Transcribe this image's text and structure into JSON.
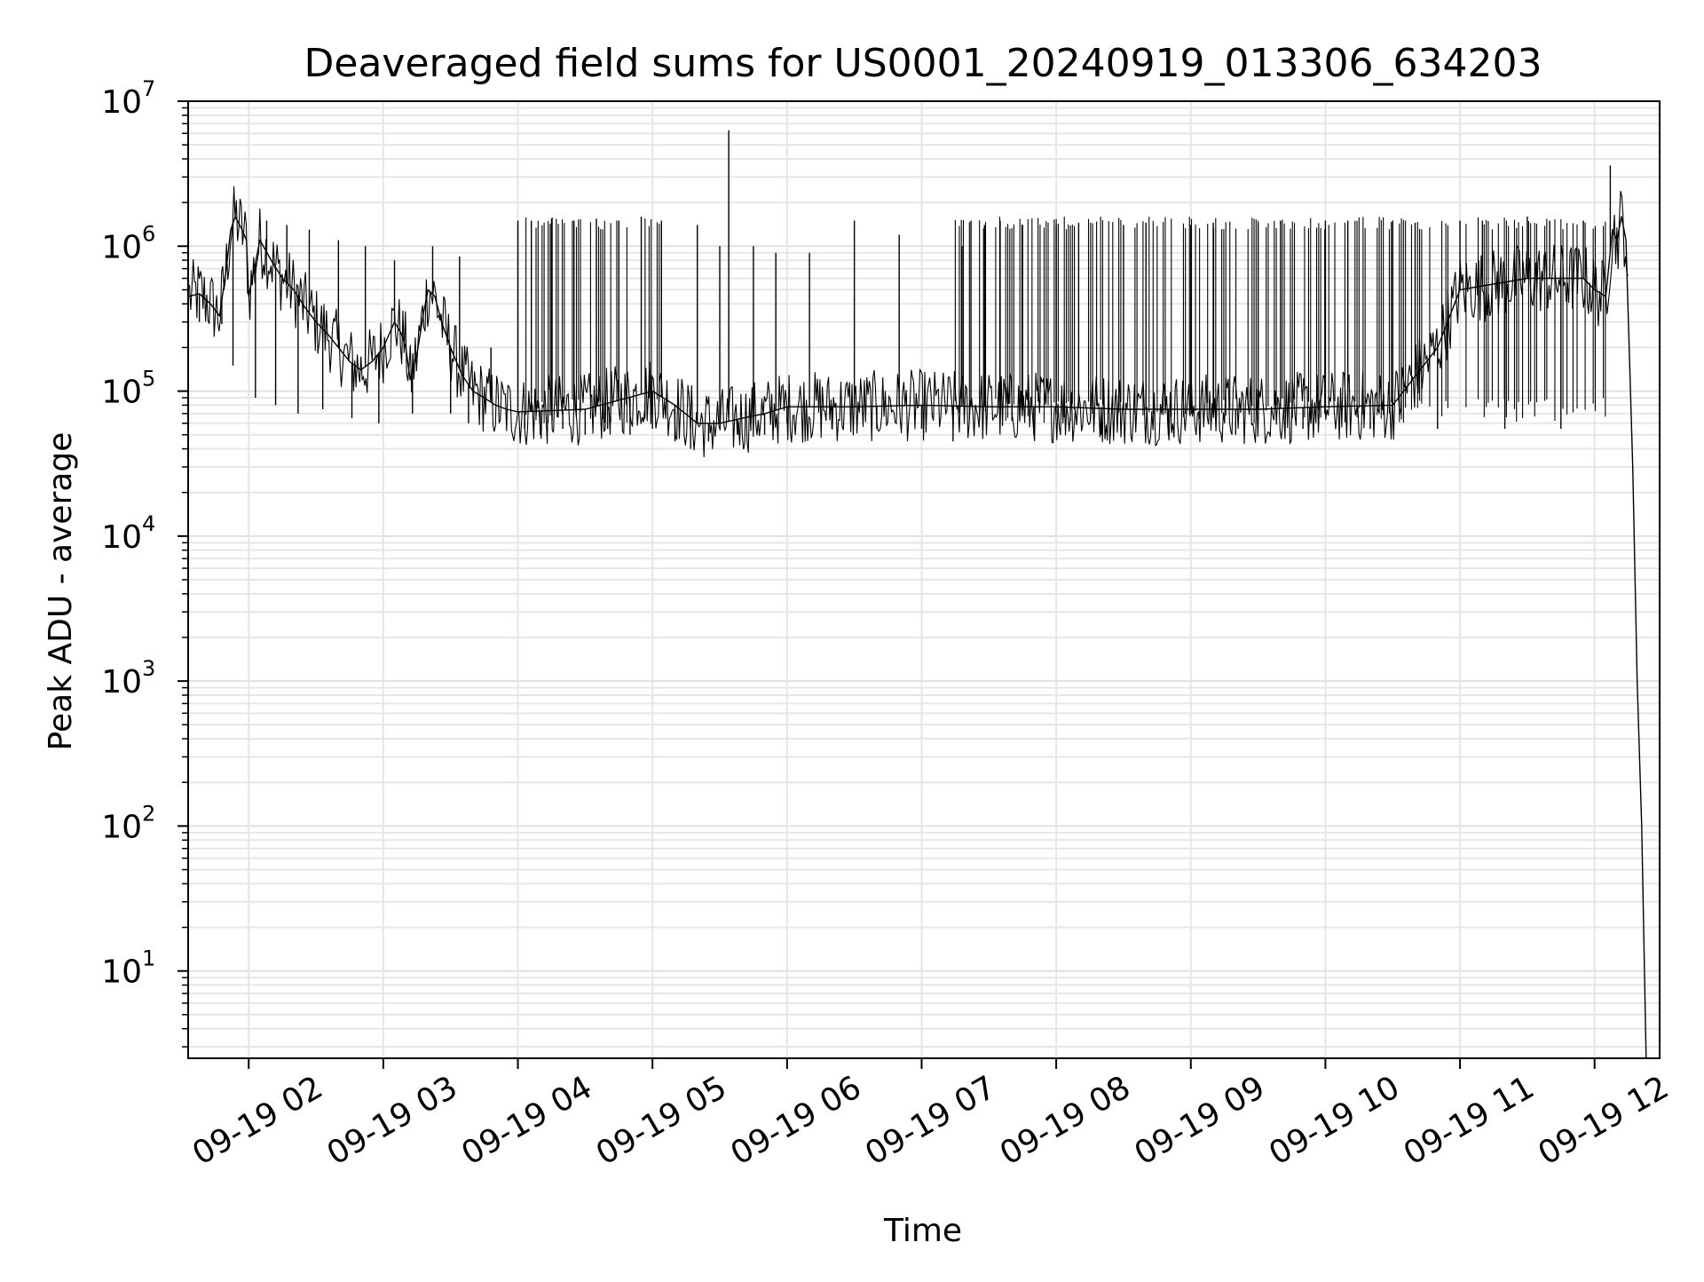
{
  "chart_data": {
    "type": "line",
    "title": "Deaveraged field sums for US0001_20240919_013306_634203",
    "xlabel": "Time",
    "ylabel": "Peak ADU - average",
    "y_scale": "log",
    "ylim": [
      2.5,
      10000000
    ],
    "xlim": [
      "2024-09-19 01:33",
      "2024-09-19 12:29"
    ],
    "grid": true,
    "line_color": "#000000",
    "x_ticks": [
      {
        "value": "2024-09-19 02:00",
        "label": "09-19 02"
      },
      {
        "value": "2024-09-19 03:00",
        "label": "09-19 03"
      },
      {
        "value": "2024-09-19 04:00",
        "label": "09-19 04"
      },
      {
        "value": "2024-09-19 05:00",
        "label": "09-19 05"
      },
      {
        "value": "2024-09-19 06:00",
        "label": "09-19 06"
      },
      {
        "value": "2024-09-19 07:00",
        "label": "09-19 07"
      },
      {
        "value": "2024-09-19 08:00",
        "label": "09-19 08"
      },
      {
        "value": "2024-09-19 09:00",
        "label": "09-19 09"
      },
      {
        "value": "2024-09-19 10:00",
        "label": "09-19 10"
      },
      {
        "value": "2024-09-19 11:00",
        "label": "09-19 11"
      },
      {
        "value": "2024-09-19 12:00",
        "label": "09-19 12"
      }
    ],
    "y_ticks": [
      {
        "value": 10,
        "base": "10",
        "exp": "1"
      },
      {
        "value": 100,
        "base": "10",
        "exp": "2"
      },
      {
        "value": 1000,
        "base": "10",
        "exp": "3"
      },
      {
        "value": 10000,
        "base": "10",
        "exp": "4"
      },
      {
        "value": 100000,
        "base": "10",
        "exp": "5"
      },
      {
        "value": 1000000,
        "base": "10",
        "exp": "6"
      },
      {
        "value": 10000000,
        "base": "10",
        "exp": "7"
      }
    ],
    "series": [
      {
        "points": [
          [
            "2024-09-19 01:33",
            450000
          ],
          [
            "2024-09-19 01:38",
            470000
          ],
          [
            "2024-09-19 01:43",
            400000
          ],
          [
            "2024-09-19 01:47",
            330000
          ],
          [
            "2024-09-19 01:50",
            700000
          ],
          [
            "2024-09-19 01:52",
            1300000
          ],
          [
            "2024-09-19 01:54",
            1600000
          ],
          [
            "2024-09-19 01:57",
            1300000
          ],
          [
            "2024-09-19 01:59",
            1100000
          ],
          [
            "2024-09-19 02:00",
            450000
          ],
          [
            "2024-09-19 02:05",
            1100000
          ],
          [
            "2024-09-19 02:10",
            800000
          ],
          [
            "2024-09-19 02:15",
            600000
          ],
          [
            "2024-09-19 02:20",
            500000
          ],
          [
            "2024-09-19 02:25",
            380000
          ],
          [
            "2024-09-19 02:30",
            300000
          ],
          [
            "2024-09-19 02:35",
            250000
          ],
          [
            "2024-09-19 02:40",
            200000
          ],
          [
            "2024-09-19 02:45",
            160000
          ],
          [
            "2024-09-19 02:50",
            140000
          ],
          [
            "2024-09-19 02:55",
            160000
          ],
          [
            "2024-09-19 03:00",
            200000
          ],
          [
            "2024-09-19 03:05",
            300000
          ],
          [
            "2024-09-19 03:08",
            250000
          ],
          [
            "2024-09-19 03:10",
            200000
          ],
          [
            "2024-09-19 03:12",
            120000
          ],
          [
            "2024-09-19 03:15",
            180000
          ],
          [
            "2024-09-19 03:18",
            350000
          ],
          [
            "2024-09-19 03:20",
            500000
          ],
          [
            "2024-09-19 03:23",
            450000
          ],
          [
            "2024-09-19 03:26",
            300000
          ],
          [
            "2024-09-19 03:30",
            200000
          ],
          [
            "2024-09-19 03:35",
            130000
          ],
          [
            "2024-09-19 03:40",
            100000
          ],
          [
            "2024-09-19 03:45",
            90000
          ],
          [
            "2024-09-19 03:50",
            80000
          ],
          [
            "2024-09-19 03:55",
            75000
          ],
          [
            "2024-09-19 04:00",
            72000
          ],
          [
            "2024-09-19 04:30",
            75000
          ],
          [
            "2024-09-19 05:00",
            100000
          ],
          [
            "2024-09-19 05:10",
            80000
          ],
          [
            "2024-09-19 05:20",
            60000
          ],
          [
            "2024-09-19 05:30",
            60000
          ],
          [
            "2024-09-19 05:40",
            65000
          ],
          [
            "2024-09-19 05:50",
            70000
          ],
          [
            "2024-09-19 06:00",
            78000
          ],
          [
            "2024-09-19 06:30",
            78000
          ],
          [
            "2024-09-19 07:00",
            80000
          ],
          [
            "2024-09-19 07:30",
            78000
          ],
          [
            "2024-09-19 08:00",
            78000
          ],
          [
            "2024-09-19 08:30",
            75000
          ],
          [
            "2024-09-19 09:00",
            75000
          ],
          [
            "2024-09-19 09:30",
            75000
          ],
          [
            "2024-09-19 10:00",
            78000
          ],
          [
            "2024-09-19 10:30",
            80000
          ],
          [
            "2024-09-19 10:50",
            200000
          ],
          [
            "2024-09-19 11:00",
            500000
          ],
          [
            "2024-09-19 11:30",
            600000
          ],
          [
            "2024-09-19 11:55",
            600000
          ],
          [
            "2024-09-19 12:00",
            500000
          ],
          [
            "2024-09-19 12:05",
            450000
          ],
          [
            "2024-09-19 12:08",
            1300000
          ],
          [
            "2024-09-19 12:10",
            1100000
          ],
          [
            "2024-09-19 12:12",
            1600000
          ],
          [
            "2024-09-19 12:14",
            1100000
          ],
          [
            "2024-09-19 12:17",
            30000
          ],
          [
            "2024-09-19 12:19",
            1000
          ],
          [
            "2024-09-19 12:21",
            100
          ],
          [
            "2024-09-19 12:23",
            2.5
          ]
        ],
        "spikes": [
          [
            "2024-09-19 01:38",
            300000
          ],
          [
            "2024-09-19 01:48",
            290000
          ],
          [
            "2024-09-19 01:53",
            150000
          ],
          [
            "2024-09-19 02:03",
            90000
          ],
          [
            "2024-09-19 02:08",
            1500000
          ],
          [
            "2024-09-19 02:12",
            80000
          ],
          [
            "2024-09-19 02:17",
            1400000
          ],
          [
            "2024-09-19 02:22",
            70000
          ],
          [
            "2024-09-19 02:27",
            1300000
          ],
          [
            "2024-09-19 02:33",
            75000
          ],
          [
            "2024-09-19 02:40",
            1100000
          ],
          [
            "2024-09-19 02:46",
            65000
          ],
          [
            "2024-09-19 02:52",
            1000000
          ],
          [
            "2024-09-19 02:58",
            60000
          ],
          [
            "2024-09-19 03:05",
            800000
          ],
          [
            "2024-09-19 03:13",
            70000
          ],
          [
            "2024-09-19 03:22",
            1000000
          ],
          [
            "2024-09-19 03:30",
            70000
          ],
          [
            "2024-09-19 03:34",
            850000
          ],
          [
            "2024-09-19 03:38",
            60000
          ],
          [
            "2024-09-19 03:48",
            200000
          ],
          [
            "2024-09-19 04:00",
            1500000
          ],
          [
            "2024-09-19 04:03",
            55000
          ],
          [
            "2024-09-19 04:06",
            1500000
          ],
          [
            "2024-09-19 04:10",
            50000
          ],
          [
            "2024-09-19 04:15",
            1550000
          ],
          [
            "2024-09-19 04:20",
            55000
          ],
          [
            "2024-09-19 04:25",
            1500000
          ],
          [
            "2024-09-19 04:30",
            50000
          ],
          [
            "2024-09-19 04:35",
            1550000
          ],
          [
            "2024-09-19 04:40",
            55000
          ],
          [
            "2024-09-19 04:45",
            1500000
          ],
          [
            "2024-09-19 04:50",
            50000
          ],
          [
            "2024-09-19 04:55",
            1600000
          ],
          [
            "2024-09-19 05:00",
            55000
          ],
          [
            "2024-09-19 05:04",
            1500000
          ],
          [
            "2024-09-19 05:10",
            45000
          ],
          [
            "2024-09-19 05:17",
            40000
          ],
          [
            "2024-09-19 05:20",
            1400000
          ],
          [
            "2024-09-19 05:25",
            45000
          ],
          [
            "2024-09-19 05:30",
            1000000
          ],
          [
            "2024-09-19 05:34",
            6300000
          ],
          [
            "2024-09-19 05:38",
            50000
          ],
          [
            "2024-09-19 05:45",
            1000000
          ],
          [
            "2024-09-19 05:50",
            50000
          ],
          [
            "2024-09-19 05:55",
            900000
          ],
          [
            "2024-09-19 06:00",
            60000
          ],
          [
            "2024-09-19 06:10",
            900000
          ],
          [
            "2024-09-19 06:20",
            55000
          ],
          [
            "2024-09-19 06:30",
            1500000
          ],
          [
            "2024-09-19 06:40",
            55000
          ],
          [
            "2024-09-19 06:50",
            1200000
          ],
          [
            "2024-09-19 07:00",
            55000
          ],
          [
            "2024-09-19 07:14",
            45000
          ],
          [
            "2024-09-19 07:18",
            1000000
          ],
          [
            "2024-09-19 07:22",
            1500000
          ],
          [
            "2024-09-19 07:28",
            1400000
          ],
          [
            "2024-09-19 07:35",
            1500000
          ],
          [
            "2024-09-19 07:45",
            1400000
          ],
          [
            "2024-09-19 07:50",
            50000
          ],
          [
            "2024-09-19 08:00",
            1400000
          ],
          [
            "2024-09-19 08:10",
            1450000
          ],
          [
            "2024-09-19 08:20",
            50000
          ],
          [
            "2024-09-19 08:30",
            1400000
          ],
          [
            "2024-09-19 08:40",
            1450000
          ],
          [
            "2024-09-19 08:50",
            50000
          ],
          [
            "2024-09-19 09:00",
            1400000
          ],
          [
            "2024-09-19 09:10",
            1450000
          ],
          [
            "2024-09-19 09:20",
            50000
          ],
          [
            "2024-09-19 09:30",
            1450000
          ],
          [
            "2024-09-19 09:40",
            1500000
          ],
          [
            "2024-09-19 09:50",
            55000
          ],
          [
            "2024-09-19 10:00",
            1500000
          ],
          [
            "2024-09-19 10:10",
            1500000
          ],
          [
            "2024-09-19 10:20",
            55000
          ],
          [
            "2024-09-19 10:30",
            1500000
          ],
          [
            "2024-09-19 10:40",
            1450000
          ],
          [
            "2024-09-19 10:50",
            55000
          ],
          [
            "2024-09-19 11:00",
            1500000
          ],
          [
            "2024-09-19 11:10",
            1500000
          ],
          [
            "2024-09-19 11:20",
            55000
          ],
          [
            "2024-09-19 11:30",
            1600000
          ],
          [
            "2024-09-19 11:40",
            1500000
          ],
          [
            "2024-09-19 11:45",
            55000
          ],
          [
            "2024-09-19 11:55",
            1500000
          ],
          [
            "2024-09-19 12:07",
            3600000
          ]
        ]
      }
    ]
  }
}
